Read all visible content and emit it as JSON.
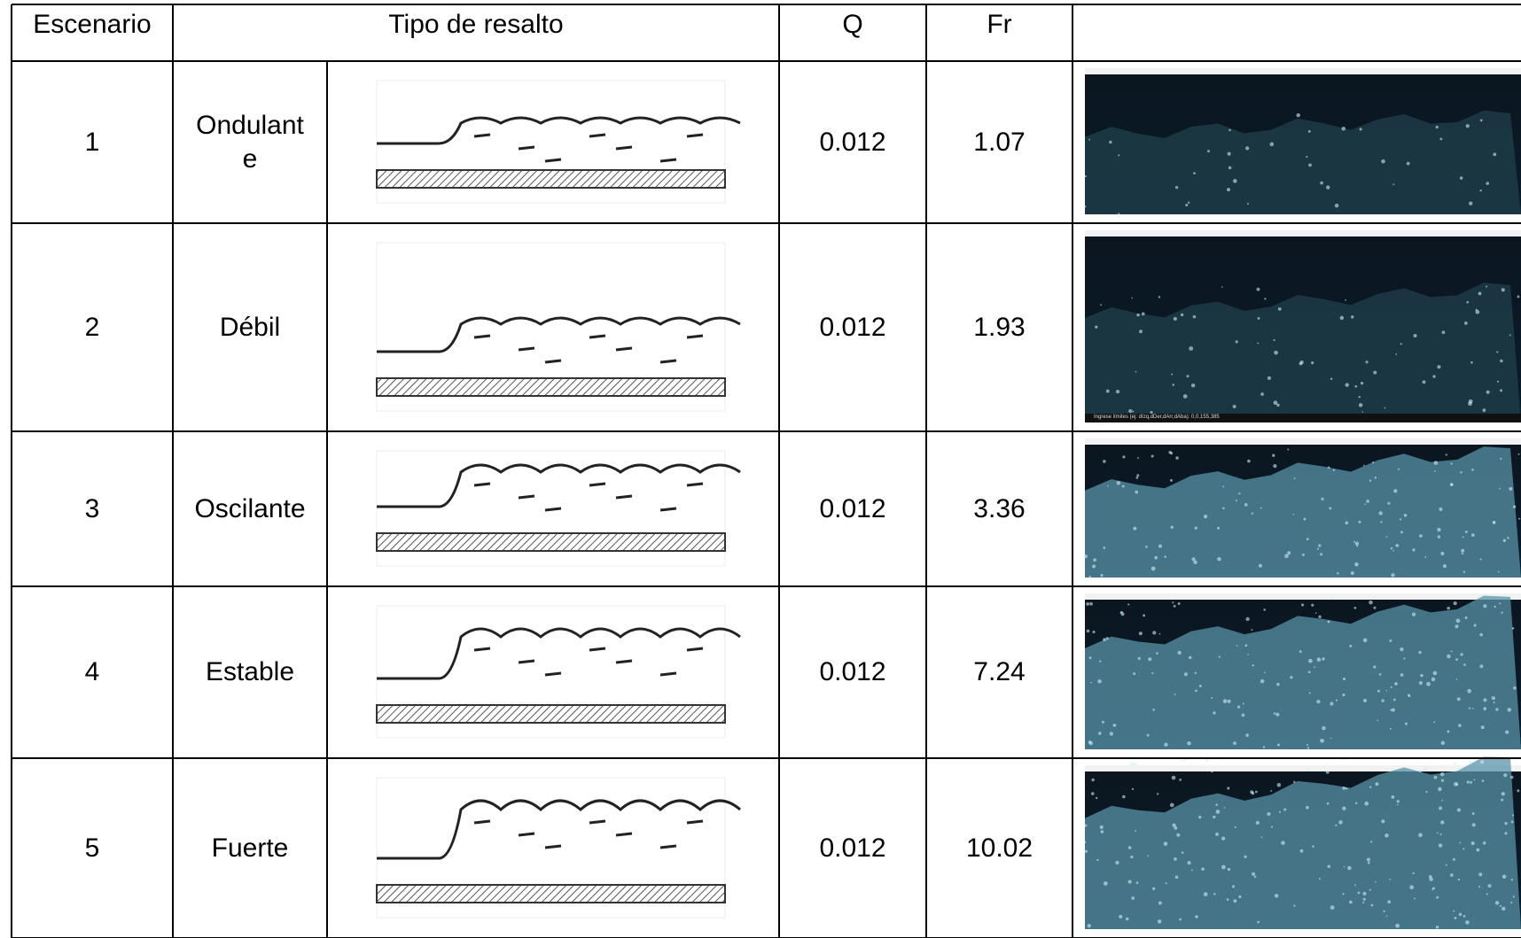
{
  "header": {
    "scenario": "Escenario",
    "type": "Tipo de resalto",
    "q": "Q",
    "fr": "Fr"
  },
  "rows": [
    {
      "scenario": "1",
      "type": "Ondulante",
      "q": "0.012",
      "fr": "1.07"
    },
    {
      "scenario": "2",
      "type": "Débil",
      "q": "0.012",
      "fr": "1.93",
      "photo_caption": "Ingrese límites (ej: dIzq,dDer,dArr,dAba): 0,0,155,385"
    },
    {
      "scenario": "3",
      "type": "Oscilante",
      "q": "0.012",
      "fr": "3.36"
    },
    {
      "scenario": "4",
      "type": "Estable",
      "q": "0.012",
      "fr": "7.24"
    },
    {
      "scenario": "5",
      "type": "Fuerte",
      "q": "0.012",
      "fr": "10.02"
    }
  ]
}
